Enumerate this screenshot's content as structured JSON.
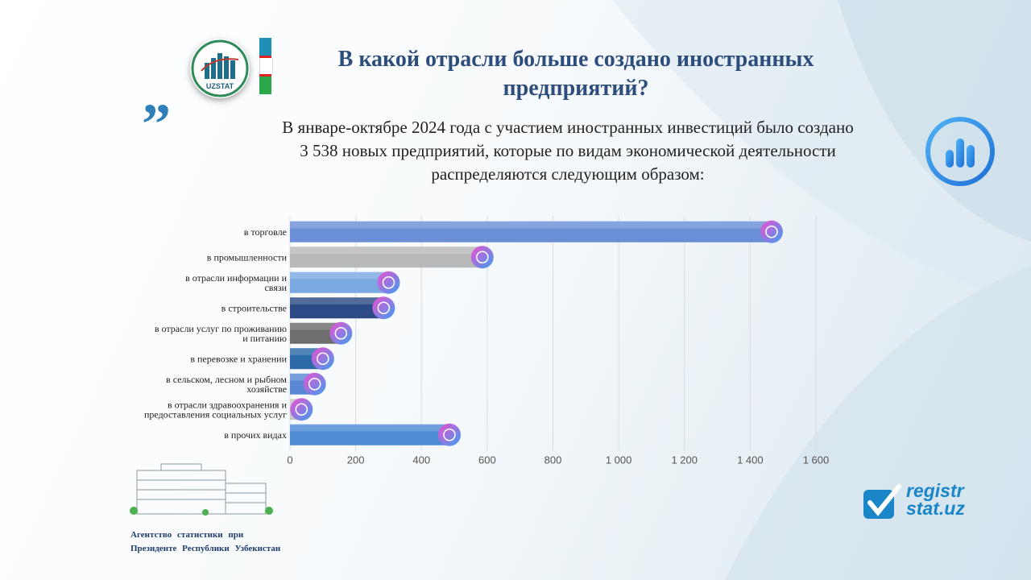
{
  "header": {
    "title_line1": "В какой отрасли больше создано иностранных",
    "title_line2": "предприятий?",
    "logo_label": "UZSTAT"
  },
  "intro": {
    "line1": "В январе-октябре 2024 года с участием иностранных инвестиций было создано",
    "line2": "3 538 новых предприятий, которые по видам экономической деятельности",
    "line3": "распределяются следующим образом:"
  },
  "footer": {
    "agency_line1": "Агентство статистики при",
    "agency_line2": "Президенте Республики Узбекистан",
    "site_line1": "registr",
    "site_line2": "stat.uz"
  },
  "chart_data": {
    "type": "bar",
    "orientation": "horizontal",
    "categories": [
      [
        "в торговле"
      ],
      [
        "в промышленности"
      ],
      [
        "в отрасли информации и",
        "связи"
      ],
      [
        "в строительстве"
      ],
      [
        "в отрасли услуг по проживанию",
        "и питанию"
      ],
      [
        "в перевозке и хранении"
      ],
      [
        "в сельском, лесном и рыбном",
        "хозяйстве"
      ],
      [
        "в отрасли здравоохранения и",
        "предоставления социальных услуг"
      ],
      [
        "в прочих видах"
      ]
    ],
    "values": [
      1470,
      590,
      305,
      290,
      160,
      105,
      80,
      40,
      490
    ],
    "xlim": [
      0,
      1600
    ],
    "xticks": [
      0,
      200,
      400,
      600,
      800,
      1000,
      1200,
      1400,
      1600
    ],
    "xtick_labels": [
      "0",
      "200",
      "400",
      "600",
      "800",
      "1 000",
      "1 200",
      "1 400",
      "1 600"
    ],
    "grid": true,
    "bar_colors": [
      "#6b8fd6",
      "#b9b9b9",
      "#7aa9e2",
      "#2c4b86",
      "#6e6e6e",
      "#2d6aa8",
      "#5b88d4",
      "#c7c7c7",
      "#4e8cd6"
    ],
    "icon_names": [
      "trade-icon",
      "factory-icon",
      "network-icon",
      "construction-icon",
      "service-icon",
      "truck-icon",
      "farm-icon",
      "health-icon",
      "more-icon"
    ]
  },
  "colors": {
    "title": "#2d4e7c",
    "accent": "#2f7fb8"
  }
}
